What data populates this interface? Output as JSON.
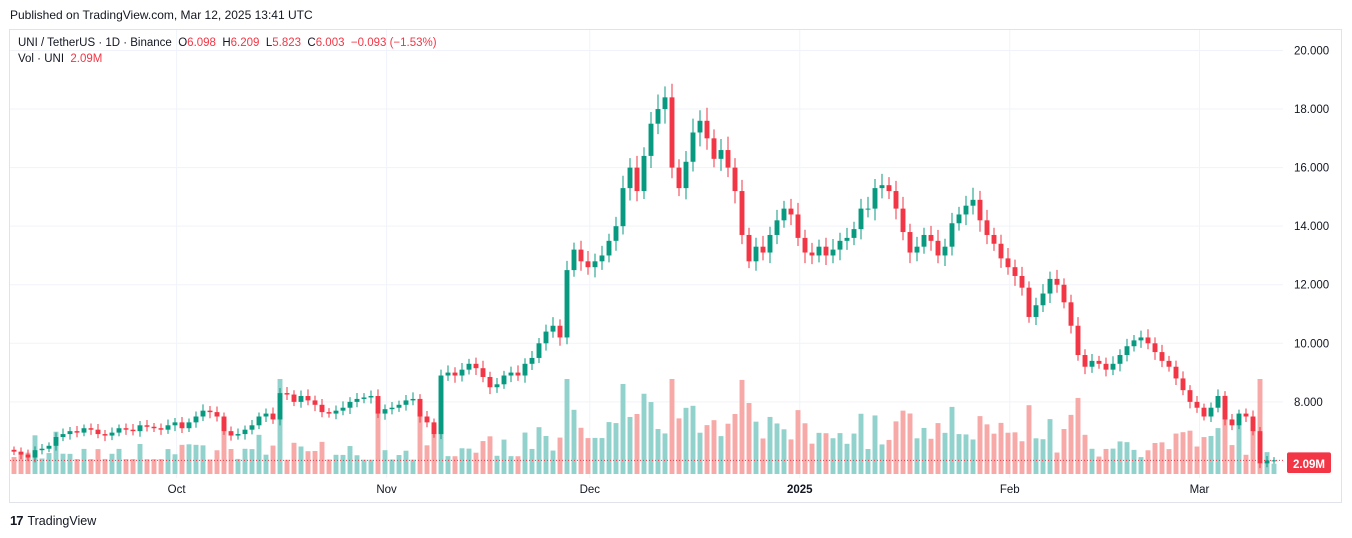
{
  "header": {
    "published": "Published on TradingView.com, Mar 12, 2025 13:41 UTC"
  },
  "legend": {
    "symbol": "UNI / TetherUS · 1D · Binance",
    "o_label": "O",
    "o": "6.098",
    "h_label": "H",
    "h": "6.209",
    "l_label": "L",
    "l": "5.823",
    "c_label": "C",
    "c": "6.003",
    "change": "−0.093 (−1.53%)",
    "vol_label": "Vol · UNI",
    "vol": "2.09M"
  },
  "footer": {
    "logo": "17",
    "brand": "TradingView"
  },
  "colors": {
    "up": "#089981",
    "down": "#f23645",
    "vol_up": "#92d2cc",
    "vol_down": "#f7a9a7"
  },
  "chart_data": {
    "type": "candlestick",
    "y_ticks": [
      "20.000",
      "18.000",
      "16.000",
      "14.000",
      "12.000",
      "10.000",
      "8.000"
    ],
    "x_ticks": [
      "Oct",
      "Nov",
      "Dec",
      "2025",
      "Feb",
      "Mar"
    ],
    "ylim": [
      5.4,
      20.7
    ],
    "last_price_label": "6.003",
    "last_volume_label": "2.09M",
    "last_price": 6.003,
    "grid": true,
    "period_start": "2024-09-07",
    "period_end": "2025-03-12",
    "closes": [
      6.3,
      6.2,
      6.1,
      6.35,
      6.4,
      6.5,
      6.8,
      6.9,
      7.0,
      6.95,
      7.1,
      7.05,
      6.9,
      6.85,
      6.95,
      7.1,
      7.05,
      7.0,
      7.2,
      7.15,
      7.1,
      7.05,
      7.2,
      7.3,
      7.1,
      7.3,
      7.5,
      7.7,
      7.65,
      7.5,
      7.0,
      6.85,
      6.9,
      7.05,
      7.2,
      7.5,
      7.6,
      7.4,
      8.3,
      8.25,
      8.0,
      8.2,
      8.05,
      7.9,
      7.65,
      7.6,
      7.7,
      7.8,
      8.0,
      8.1,
      8.15,
      8.2,
      7.6,
      7.75,
      7.8,
      7.9,
      8.05,
      8.1,
      7.5,
      7.3,
      6.9,
      8.9,
      9.0,
      8.9,
      9.1,
      9.3,
      9.15,
      8.85,
      8.5,
      8.6,
      8.9,
      9.0,
      8.9,
      9.3,
      9.5,
      10.0,
      10.4,
      10.6,
      10.2,
      12.5,
      13.2,
      12.8,
      12.6,
      12.8,
      13.0,
      13.5,
      14.0,
      15.3,
      16.0,
      15.2,
      16.4,
      17.5,
      18.0,
      18.4,
      16.0,
      15.3,
      16.2,
      17.2,
      17.6,
      17.0,
      16.3,
      16.6,
      16.0,
      15.2,
      13.7,
      12.8,
      13.3,
      13.1,
      13.7,
      14.2,
      14.6,
      14.4,
      13.6,
      13.1,
      13.0,
      13.3,
      13.0,
      13.2,
      13.5,
      13.6,
      13.9,
      14.6,
      14.6,
      15.3,
      15.4,
      15.2,
      14.6,
      13.8,
      13.1,
      13.3,
      13.7,
      13.5,
      13.0,
      13.3,
      14.1,
      14.4,
      14.7,
      14.9,
      14.2,
      13.7,
      13.4,
      12.9,
      12.6,
      12.3,
      11.9,
      10.9,
      11.3,
      11.7,
      12.2,
      12.0,
      11.4,
      10.6,
      9.6,
      9.2,
      9.4,
      9.3,
      9.1,
      9.3,
      9.6,
      9.9,
      10.1,
      10.2,
      10.0,
      9.7,
      9.4,
      9.2,
      8.8,
      8.4,
      8.0,
      7.8,
      7.5,
      7.8,
      8.2,
      7.4,
      7.2,
      7.6,
      7.5,
      7.0,
      5.9,
      6.0,
      6.003
    ]
  }
}
